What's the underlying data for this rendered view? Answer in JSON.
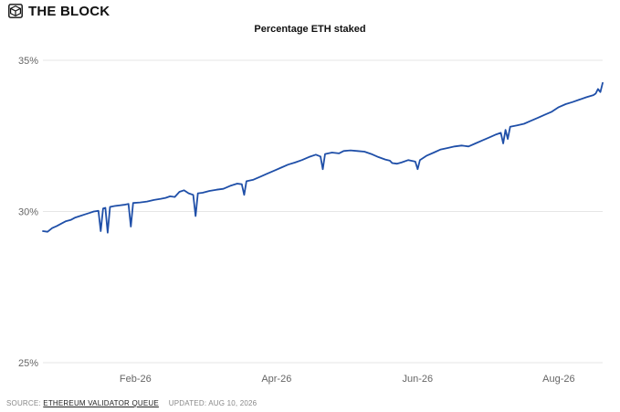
{
  "brand": {
    "name": "THE BLOCK",
    "logo_icon": "cube-logo-icon"
  },
  "footer": {
    "source_label": "SOURCE:",
    "source_link": "ETHEREUM VALIDATOR QUEUE",
    "updated_label": "UPDATED:",
    "updated_date": "AUG 10, 2026"
  },
  "colors": {
    "line": "#1f4fa8",
    "grid": "#e6e6e6",
    "axis_text": "#666666",
    "title": "#111111"
  },
  "chart_data": {
    "type": "line",
    "title": "Percentage ETH staked",
    "xlabel": "",
    "ylabel": "",
    "x_range": [
      "2026-01-01",
      "2026-08-31"
    ],
    "ylim": [
      25,
      35
    ],
    "y_ticks": [
      {
        "value": 25,
        "label": "25%"
      },
      {
        "value": 30,
        "label": "30%"
      },
      {
        "value": 35,
        "label": "35%"
      }
    ],
    "x_ticks": [
      {
        "value": "2026-02-10",
        "label": "Feb-26"
      },
      {
        "value": "2026-04-12",
        "label": "Apr-26"
      },
      {
        "value": "2026-06-12",
        "label": "Jun-26"
      },
      {
        "value": "2026-08-12",
        "label": "Aug-26"
      }
    ],
    "grid": true,
    "series": [
      {
        "values": [
          [
            "2026-01-01",
            29.35
          ],
          [
            "2026-01-03",
            29.33
          ],
          [
            "2026-01-05",
            29.45
          ],
          [
            "2026-01-07",
            29.52
          ],
          [
            "2026-01-09",
            29.6
          ],
          [
            "2026-01-11",
            29.68
          ],
          [
            "2026-01-13",
            29.72
          ],
          [
            "2026-01-15",
            29.8
          ],
          [
            "2026-01-17",
            29.85
          ],
          [
            "2026-01-19",
            29.9
          ],
          [
            "2026-01-21",
            29.95
          ],
          [
            "2026-01-23",
            30.0
          ],
          [
            "2026-01-25",
            30.02
          ],
          [
            "2026-01-26",
            29.35
          ],
          [
            "2026-01-27",
            30.1
          ],
          [
            "2026-01-28",
            30.12
          ],
          [
            "2026-01-29",
            29.3
          ],
          [
            "2026-01-30",
            30.15
          ],
          [
            "2026-02-01",
            30.18
          ],
          [
            "2026-02-03",
            30.2
          ],
          [
            "2026-02-05",
            30.22
          ],
          [
            "2026-02-07",
            30.25
          ],
          [
            "2026-02-08",
            29.5
          ],
          [
            "2026-02-09",
            30.28
          ],
          [
            "2026-02-12",
            30.3
          ],
          [
            "2026-02-15",
            30.33
          ],
          [
            "2026-02-18",
            30.38
          ],
          [
            "2026-02-21",
            30.42
          ],
          [
            "2026-02-23",
            30.45
          ],
          [
            "2026-02-25",
            30.5
          ],
          [
            "2026-02-27",
            30.48
          ],
          [
            "2026-03-01",
            30.65
          ],
          [
            "2026-03-03",
            30.7
          ],
          [
            "2026-03-05",
            30.6
          ],
          [
            "2026-03-07",
            30.55
          ],
          [
            "2026-03-08",
            29.85
          ],
          [
            "2026-03-09",
            30.6
          ],
          [
            "2026-03-11",
            30.62
          ],
          [
            "2026-03-14",
            30.68
          ],
          [
            "2026-03-17",
            30.72
          ],
          [
            "2026-03-20",
            30.75
          ],
          [
            "2026-03-23",
            30.85
          ],
          [
            "2026-03-26",
            30.92
          ],
          [
            "2026-03-28",
            30.9
          ],
          [
            "2026-03-29",
            30.55
          ],
          [
            "2026-03-30",
            31.0
          ],
          [
            "2026-04-02",
            31.05
          ],
          [
            "2026-04-05",
            31.15
          ],
          [
            "2026-04-08",
            31.25
          ],
          [
            "2026-04-11",
            31.35
          ],
          [
            "2026-04-14",
            31.45
          ],
          [
            "2026-04-17",
            31.55
          ],
          [
            "2026-04-20",
            31.62
          ],
          [
            "2026-04-23",
            31.7
          ],
          [
            "2026-04-26",
            31.8
          ],
          [
            "2026-04-29",
            31.88
          ],
          [
            "2026-05-01",
            31.82
          ],
          [
            "2026-05-02",
            31.4
          ],
          [
            "2026-05-03",
            31.9
          ],
          [
            "2026-05-06",
            31.95
          ],
          [
            "2026-05-09",
            31.92
          ],
          [
            "2026-05-11",
            32.0
          ],
          [
            "2026-05-14",
            32.02
          ],
          [
            "2026-05-17",
            32.0
          ],
          [
            "2026-05-20",
            31.98
          ],
          [
            "2026-05-23",
            31.9
          ],
          [
            "2026-05-26",
            31.8
          ],
          [
            "2026-05-29",
            31.72
          ],
          [
            "2026-05-31",
            31.68
          ],
          [
            "2026-06-01",
            31.6
          ],
          [
            "2026-06-03",
            31.58
          ],
          [
            "2026-06-05",
            31.62
          ],
          [
            "2026-06-08",
            31.7
          ],
          [
            "2026-06-11",
            31.65
          ],
          [
            "2026-06-12",
            31.4
          ],
          [
            "2026-06-13",
            31.7
          ],
          [
            "2026-06-16",
            31.85
          ],
          [
            "2026-06-19",
            31.95
          ],
          [
            "2026-06-22",
            32.05
          ],
          [
            "2026-06-25",
            32.1
          ],
          [
            "2026-06-28",
            32.15
          ],
          [
            "2026-07-01",
            32.18
          ],
          [
            "2026-07-04",
            32.15
          ],
          [
            "2026-07-07",
            32.25
          ],
          [
            "2026-07-10",
            32.35
          ],
          [
            "2026-07-13",
            32.45
          ],
          [
            "2026-07-16",
            32.55
          ],
          [
            "2026-07-18",
            32.6
          ],
          [
            "2026-07-19",
            32.25
          ],
          [
            "2026-07-20",
            32.7
          ],
          [
            "2026-07-21",
            32.4
          ],
          [
            "2026-07-22",
            32.8
          ],
          [
            "2026-07-25",
            32.85
          ],
          [
            "2026-07-28",
            32.9
          ],
          [
            "2026-07-31",
            33.0
          ],
          [
            "2026-08-03",
            33.1
          ],
          [
            "2026-08-06",
            33.2
          ],
          [
            "2026-08-09",
            33.3
          ],
          [
            "2026-08-12",
            33.45
          ],
          [
            "2026-08-15",
            33.55
          ],
          [
            "2026-08-18",
            33.62
          ],
          [
            "2026-08-21",
            33.7
          ],
          [
            "2026-08-24",
            33.78
          ],
          [
            "2026-08-27",
            33.85
          ],
          [
            "2026-08-28",
            33.9
          ],
          [
            "2026-08-29",
            34.05
          ],
          [
            "2026-08-30",
            33.95
          ],
          [
            "2026-08-31",
            34.25
          ]
        ]
      }
    ]
  }
}
